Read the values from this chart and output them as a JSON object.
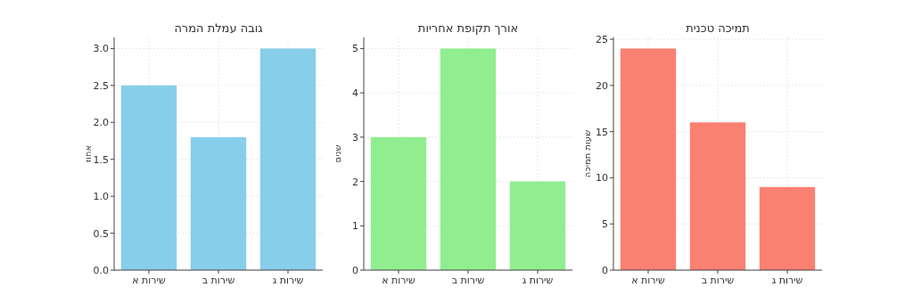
{
  "chart_data": [
    {
      "type": "bar",
      "title": "גובה עמלת המרה",
      "ylabel": "אחוז",
      "categories": [
        "שירות א",
        "שירות ב",
        "שירות ג"
      ],
      "values": [
        2.5,
        1.8,
        3.0
      ],
      "color": "#87ceeb",
      "ylim": [
        0,
        3.15
      ],
      "yticks": [
        {
          "value": 0,
          "label": "0.0"
        },
        {
          "value": 0.5,
          "label": "0.5"
        },
        {
          "value": 1,
          "label": "1.0"
        },
        {
          "value": 1.5,
          "label": "1.5"
        },
        {
          "value": 2,
          "label": "2.0"
        },
        {
          "value": 2.5,
          "label": "2.5"
        },
        {
          "value": 3,
          "label": "3.0"
        }
      ],
      "grid": true
    },
    {
      "type": "bar",
      "title": "אורך תקופת אחריות",
      "ylabel": "שנים",
      "categories": [
        "שירות א",
        "שירות ב",
        "שירות ג"
      ],
      "values": [
        3,
        5,
        2
      ],
      "color": "#90ee90",
      "ylim": [
        0,
        5.25
      ],
      "yticks": [
        0,
        1,
        2,
        3,
        4,
        5
      ],
      "grid": true
    },
    {
      "type": "bar",
      "title": "תמיכה טכנית",
      "ylabel": "שעות תמיכה",
      "categories": [
        "שירות א",
        "שירות ב",
        "שירות ג"
      ],
      "values": [
        24,
        16,
        9
      ],
      "color": "#fa8072",
      "ylim": [
        0,
        25.2
      ],
      "yticks": [
        0,
        5,
        10,
        15,
        20,
        25
      ],
      "grid": true
    }
  ]
}
